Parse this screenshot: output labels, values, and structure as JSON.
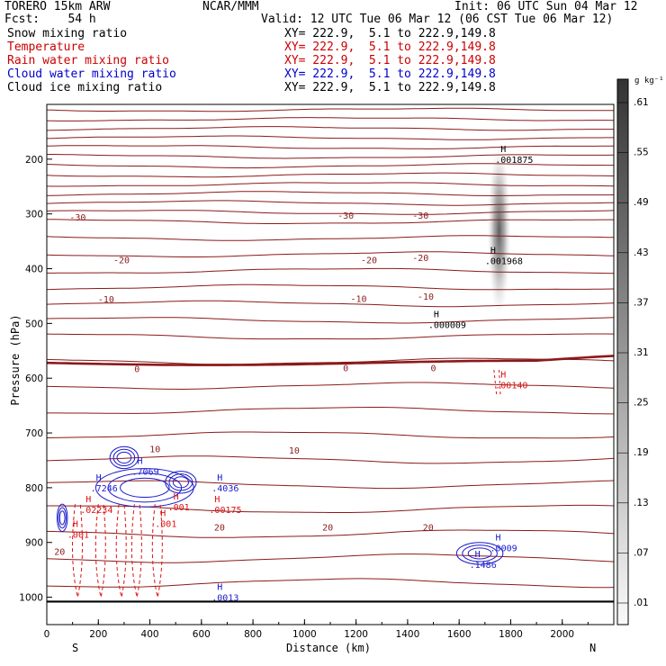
{
  "header": {
    "model": "TORERO  15km ARW",
    "center": "NCAR/MMM",
    "init": "Init: 06 UTC Sun 04 Mar 12",
    "fcst": "Fcst:    54 h",
    "valid": "Valid: 12 UTC Tue 06 Mar 12 (06 CST Tue 06 Mar 12)"
  },
  "fields": [
    {
      "name": "Snow mixing ratio",
      "xy": "",
      "color": "#000000"
    },
    {
      "name": "Temperature",
      "xy": "XY= 222.9,  5.1 to 222.9,149.8",
      "color": "#cc0000"
    },
    {
      "name": "Rain water mixing ratio",
      "xy": "XY= 222.9,  5.1 to 222.9,149.8",
      "color": "#cc0000"
    },
    {
      "name": "Cloud water mixing ratio",
      "xy": "XY= 222.9,  5.1 to 222.9,149.8",
      "color": "#0000cc"
    },
    {
      "name": "Cloud ice mixing ratio",
      "xy": "XY= 222.9,  5.1 to 222.9,149.8",
      "color": "#000000"
    }
  ],
  "snow_xy": "XY= 222.9,  5.1 to 222.9,149.8",
  "colors": {
    "temperature": "#8b1a1a",
    "freezing": "#8b1a1a",
    "rain": "#dd1111",
    "cloud_water": "#1a1acc",
    "cloud_ice": "#000000",
    "snow_shade": "#444444"
  },
  "chart_data": {
    "type": "heatmap",
    "xlabel": "Distance (km)",
    "ylabel": "Pressure (hPa)",
    "xlim": [
      0,
      2200
    ],
    "ylim": [
      1050,
      100
    ],
    "x_ticks": [
      0,
      200,
      400,
      600,
      800,
      1000,
      1200,
      1400,
      1600,
      1800,
      2000
    ],
    "y_ticks": [
      200,
      300,
      400,
      500,
      600,
      700,
      800,
      900,
      1000
    ],
    "end_labels": {
      "left": "S",
      "right": "N"
    },
    "colorbar": {
      "unit": "g kg⁻¹",
      "ticks": [
        ".01",
        ".07",
        ".13",
        ".19",
        ".25",
        ".31",
        ".37",
        ".43",
        ".49",
        ".55",
        ".61"
      ]
    },
    "isotherm_labels": [
      {
        "x": 120,
        "y": 307,
        "text": "-30"
      },
      {
        "x": 1160,
        "y": 304,
        "text": "-30"
      },
      {
        "x": 1450,
        "y": 304,
        "text": "-30"
      },
      {
        "x": 290,
        "y": 385,
        "text": "-20"
      },
      {
        "x": 1250,
        "y": 385,
        "text": "-20"
      },
      {
        "x": 1450,
        "y": 381,
        "text": "-20"
      },
      {
        "x": 230,
        "y": 457,
        "text": "-10"
      },
      {
        "x": 1210,
        "y": 456,
        "text": "-10"
      },
      {
        "x": 1470,
        "y": 452,
        "text": "-10"
      },
      {
        "x": 350,
        "y": 584,
        "text": "0"
      },
      {
        "x": 1160,
        "y": 582,
        "text": "0"
      },
      {
        "x": 1500,
        "y": 582,
        "text": "0"
      },
      {
        "x": 420,
        "y": 730,
        "text": "10"
      },
      {
        "x": 960,
        "y": 733,
        "text": "10"
      },
      {
        "x": 50,
        "y": 918,
        "text": "20"
      },
      {
        "x": 670,
        "y": 873,
        "text": "20"
      },
      {
        "x": 1090,
        "y": 873,
        "text": "20"
      },
      {
        "x": 1480,
        "y": 873,
        "text": "20"
      }
    ],
    "maxima": [
      {
        "field": "snow",
        "x": 1740,
        "p": 190,
        "label": ".001875"
      },
      {
        "field": "snow",
        "x": 1700,
        "p": 375,
        "label": ".001968"
      },
      {
        "field": "snow",
        "x": 1480,
        "p": 492,
        "label": ".000009"
      },
      {
        "field": "rain",
        "x": 1740,
        "p": 602,
        "label": ".00140"
      },
      {
        "field": "cloud_water",
        "x": 330,
        "p": 760,
        "label": ".7069"
      },
      {
        "field": "cloud_water",
        "x": 170,
        "p": 790,
        "label": ".7246"
      },
      {
        "field": "cloud_water",
        "x": 640,
        "p": 790,
        "label": ".4036"
      },
      {
        "field": "rain",
        "x": 130,
        "p": 830,
        "label": ".02234"
      },
      {
        "field": "rain",
        "x": 630,
        "p": 830,
        "label": ".00175"
      },
      {
        "field": "rain",
        "x": 470,
        "p": 825,
        "label": ".001"
      },
      {
        "field": "rain",
        "x": 420,
        "p": 855,
        "label": ".001"
      },
      {
        "field": "rain",
        "x": 80,
        "p": 875,
        "label": ".001"
      },
      {
        "field": "cloud_water",
        "x": 1640,
        "p": 930,
        "label": ".1486"
      },
      {
        "field": "cloud_water",
        "x": 1720,
        "p": 900,
        "label": ".0009"
      },
      {
        "field": "cloud_water",
        "x": 640,
        "p": 990,
        "label": ".0013"
      }
    ]
  }
}
